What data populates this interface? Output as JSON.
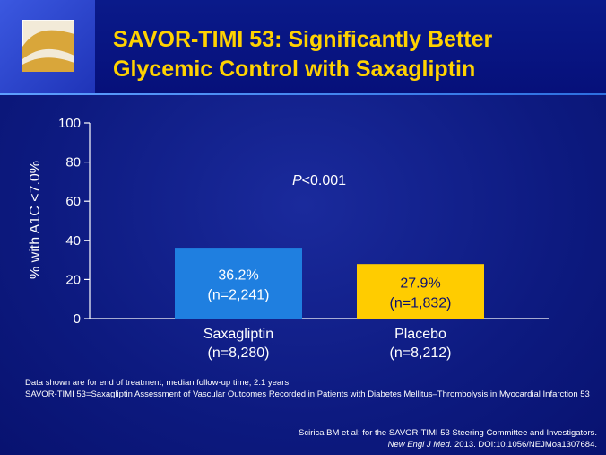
{
  "slide": {
    "title_line1": "SAVOR-TIMI 53: Significantly Better",
    "title_line2": "Glycemic Control with Saxagliptin",
    "colors": {
      "title": "#ffd200",
      "background": "#0d1a80"
    }
  },
  "chart_data": {
    "type": "bar",
    "ylabel": "% with A1C <7.0%",
    "ylim": [
      0,
      100
    ],
    "yticks": [
      0,
      20,
      40,
      60,
      80,
      100
    ],
    "annotation_p": "P",
    "annotation_rest": "<0.001",
    "categories": [
      {
        "line1": "Saxagliptin",
        "line2": "(n=8,280)"
      },
      {
        "line1": "Placebo",
        "line2": "(n=8,212)"
      }
    ],
    "values": [
      36.2,
      27.9
    ],
    "bar_labels": [
      {
        "value": "36.2%",
        "n": "(n=2,241)"
      },
      {
        "value": "27.9%",
        "n": "(n=1,832)"
      }
    ],
    "colors": [
      "#1f7fe0",
      "#ffcc00"
    ],
    "label_colors": [
      "#ffffff",
      "#0a1070"
    ]
  },
  "footnote": {
    "line1": "Data shown are for end of treatment; median follow-up time, 2.1 years.",
    "line2": "SAVOR-TIMI 53=Saxagliptin Assessment of Vascular Outcomes Recorded in Patients with Diabetes Mellitus–Thrombolysis in Myocardial Infarction 53"
  },
  "citation": {
    "line1": "Scirica BM et al; for the SAVOR-TIMI 53 Steering Committee and Investigators.",
    "journal": "New Engl J Med.",
    "rest": " 2013. DOI:10.1056/NEJMoa1307684."
  }
}
